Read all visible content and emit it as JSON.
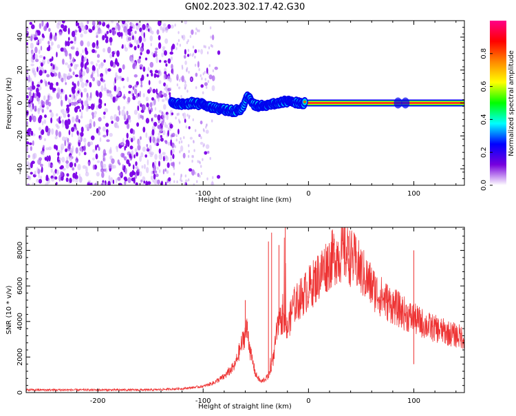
{
  "title": "GN02.2023.302.17.42.G30",
  "colors": {
    "line": "#ee3333",
    "axis": "#000000",
    "background": "#ffffff"
  },
  "chart_data": [
    {
      "type": "heatmap",
      "xlabel": "Height of straight line (km)",
      "ylabel": "Frequency (Hz)",
      "xlim": [
        -268,
        148
      ],
      "ylim": [
        -50,
        50
      ],
      "xticks": [
        -200,
        -100,
        0,
        100
      ],
      "yticks": [
        -40,
        -20,
        0,
        20,
        40
      ],
      "colorbar": {
        "label": "Normalized spectral amplitude",
        "range": [
          0,
          1
        ],
        "ticks": [
          0.0,
          0.2,
          0.4,
          0.6,
          0.8
        ],
        "colormap": [
          "#ffffff",
          "#7700dd",
          "#0000ff",
          "#00ffff",
          "#00ff00",
          "#ffff00",
          "#ff8800",
          "#ff0000",
          "#ff0088"
        ]
      },
      "noise_region_x": [
        -268,
        -105
      ],
      "ridge": [
        {
          "x": -130,
          "y": 0
        },
        {
          "x": -120,
          "y": -1
        },
        {
          "x": -110,
          "y": 0
        },
        {
          "x": -100,
          "y": -1
        },
        {
          "x": -90,
          "y": -3
        },
        {
          "x": -80,
          "y": -4
        },
        {
          "x": -70,
          "y": -5
        },
        {
          "x": -62,
          "y": -3
        },
        {
          "x": -58,
          "y": 4
        },
        {
          "x": -50,
          "y": -2
        },
        {
          "x": -40,
          "y": -1
        },
        {
          "x": -30,
          "y": 0
        },
        {
          "x": -20,
          "y": 1
        },
        {
          "x": -10,
          "y": 0
        },
        {
          "x": 0,
          "y": 0
        },
        {
          "x": 50,
          "y": 0
        },
        {
          "x": 100,
          "y": 0
        },
        {
          "x": 148,
          "y": 0
        }
      ],
      "band_center_hz": 0
    },
    {
      "type": "line",
      "xlabel": "Height of straight line (km)",
      "ylabel": "SNR (10 * v/v)",
      "xlim": [
        -268,
        148
      ],
      "ylim": [
        0,
        9300
      ],
      "xticks": [
        -200,
        -100,
        0,
        100
      ],
      "yticks": [
        0,
        2000,
        4000,
        6000,
        8000
      ],
      "envelope": [
        {
          "x": -268,
          "y": 150
        },
        {
          "x": -200,
          "y": 150
        },
        {
          "x": -150,
          "y": 150
        },
        {
          "x": -120,
          "y": 220
        },
        {
          "x": -100,
          "y": 350
        },
        {
          "x": -90,
          "y": 550
        },
        {
          "x": -80,
          "y": 900
        },
        {
          "x": -70,
          "y": 1500
        },
        {
          "x": -62,
          "y": 3000
        },
        {
          "x": -58,
          "y": 3600
        },
        {
          "x": -55,
          "y": 2200
        },
        {
          "x": -50,
          "y": 1000
        },
        {
          "x": -45,
          "y": 600
        },
        {
          "x": -38,
          "y": 900
        },
        {
          "x": -33,
          "y": 2000
        },
        {
          "x": -30,
          "y": 3500
        },
        {
          "x": -25,
          "y": 4200
        },
        {
          "x": -20,
          "y": 3500
        },
        {
          "x": -15,
          "y": 4800
        },
        {
          "x": -5,
          "y": 5500
        },
        {
          "x": 5,
          "y": 6200
        },
        {
          "x": 15,
          "y": 7000
        },
        {
          "x": 25,
          "y": 7700
        },
        {
          "x": 35,
          "y": 7900
        },
        {
          "x": 45,
          "y": 7300
        },
        {
          "x": 55,
          "y": 6400
        },
        {
          "x": 65,
          "y": 5600
        },
        {
          "x": 75,
          "y": 5100
        },
        {
          "x": 85,
          "y": 4700
        },
        {
          "x": 95,
          "y": 4300
        },
        {
          "x": 105,
          "y": 4000
        },
        {
          "x": 115,
          "y": 3700
        },
        {
          "x": 125,
          "y": 3500
        },
        {
          "x": 135,
          "y": 3300
        },
        {
          "x": 148,
          "y": 3100
        }
      ],
      "spikes": [
        {
          "x": -60,
          "y": 5200
        },
        {
          "x": -38,
          "y": 8500
        },
        {
          "x": -35,
          "y": 9000
        },
        {
          "x": -28,
          "y": 8300
        },
        {
          "x": -22,
          "y": 9300
        },
        {
          "x": 38,
          "y": 8800
        },
        {
          "x": 100,
          "y": 8000
        },
        {
          "x": 100,
          "y": 1600
        }
      ]
    }
  ]
}
